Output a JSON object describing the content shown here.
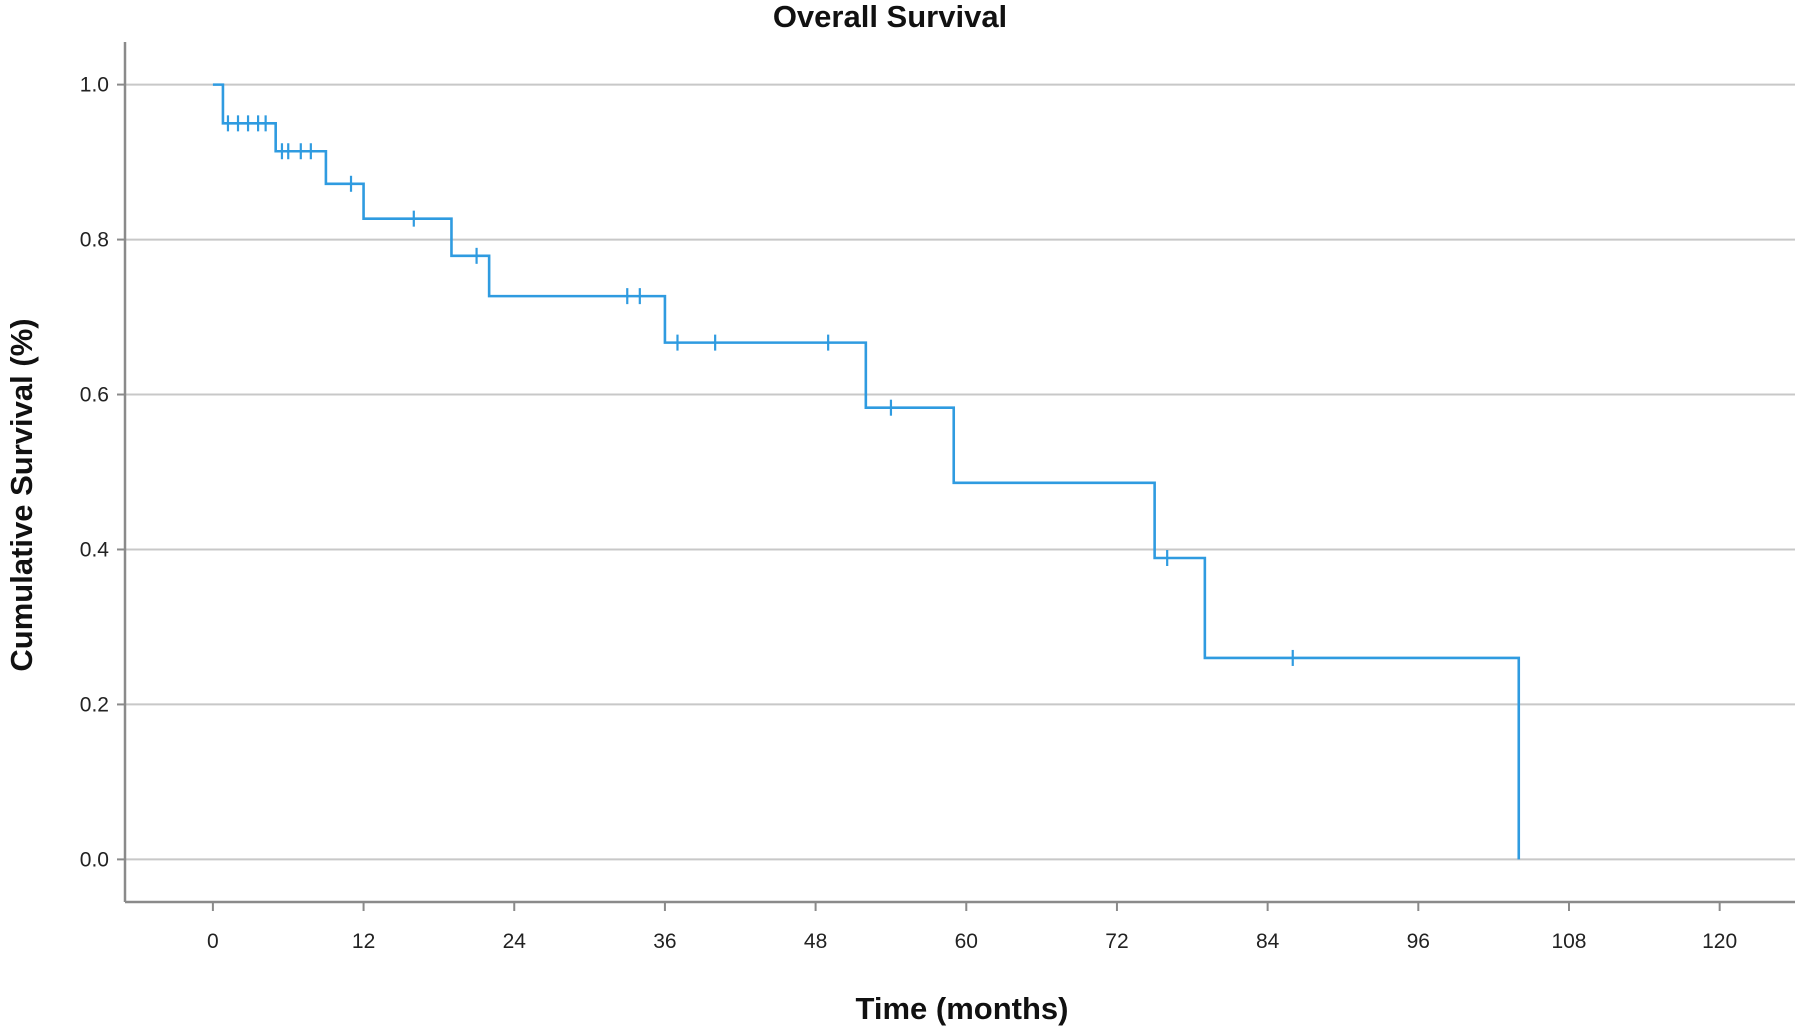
{
  "chart_data": {
    "type": "line",
    "subtype": "kaplan-meier step",
    "title": "Overall Survival",
    "xlabel": "Time (months)",
    "ylabel": "Cumulative Survival (%)",
    "xlim": [
      -7,
      126
    ],
    "ylim": [
      -0.055,
      1.055
    ],
    "x_ticks": [
      0,
      12,
      24,
      36,
      48,
      60,
      72,
      84,
      96,
      108,
      120
    ],
    "x_tick_labels": [
      "0",
      "12",
      "24",
      "36",
      "48",
      "60",
      "72",
      "84",
      "96",
      "108",
      "120"
    ],
    "y_ticks": [
      0.0,
      0.2,
      0.4,
      0.6,
      0.8,
      1.0
    ],
    "y_tick_labels": [
      "0.0",
      "0.2",
      "0.4",
      "0.6",
      "0.8",
      "1.0"
    ],
    "grid": "horizontal",
    "legend": "none",
    "color": "#2f9be0",
    "series": [
      {
        "steps": [
          {
            "x": 0,
            "y": 1.0
          },
          {
            "x": 0.8,
            "y": 0.95
          },
          {
            "x": 5,
            "y": 0.914
          },
          {
            "x": 9,
            "y": 0.872
          },
          {
            "x": 12,
            "y": 0.827
          },
          {
            "x": 19,
            "y": 0.779
          },
          {
            "x": 22,
            "y": 0.727
          },
          {
            "x": 36,
            "y": 0.667
          },
          {
            "x": 52,
            "y": 0.583
          },
          {
            "x": 59,
            "y": 0.486
          },
          {
            "x": 75,
            "y": 0.389
          },
          {
            "x": 79,
            "y": 0.26
          },
          {
            "x": 104,
            "y": 0.0
          }
        ],
        "censored": [
          {
            "x": 1.2,
            "y": 0.95
          },
          {
            "x": 2.0,
            "y": 0.95
          },
          {
            "x": 2.8,
            "y": 0.95
          },
          {
            "x": 3.6,
            "y": 0.95
          },
          {
            "x": 4.2,
            "y": 0.95
          },
          {
            "x": 5.5,
            "y": 0.914
          },
          {
            "x": 6.0,
            "y": 0.914
          },
          {
            "x": 7.0,
            "y": 0.914
          },
          {
            "x": 7.8,
            "y": 0.914
          },
          {
            "x": 11,
            "y": 0.872
          },
          {
            "x": 16,
            "y": 0.827
          },
          {
            "x": 21,
            "y": 0.779
          },
          {
            "x": 33,
            "y": 0.727
          },
          {
            "x": 34,
            "y": 0.727
          },
          {
            "x": 37,
            "y": 0.667
          },
          {
            "x": 40,
            "y": 0.667
          },
          {
            "x": 49,
            "y": 0.667
          },
          {
            "x": 54,
            "y": 0.583
          },
          {
            "x": 76,
            "y": 0.389
          },
          {
            "x": 86,
            "y": 0.26
          }
        ]
      }
    ]
  }
}
